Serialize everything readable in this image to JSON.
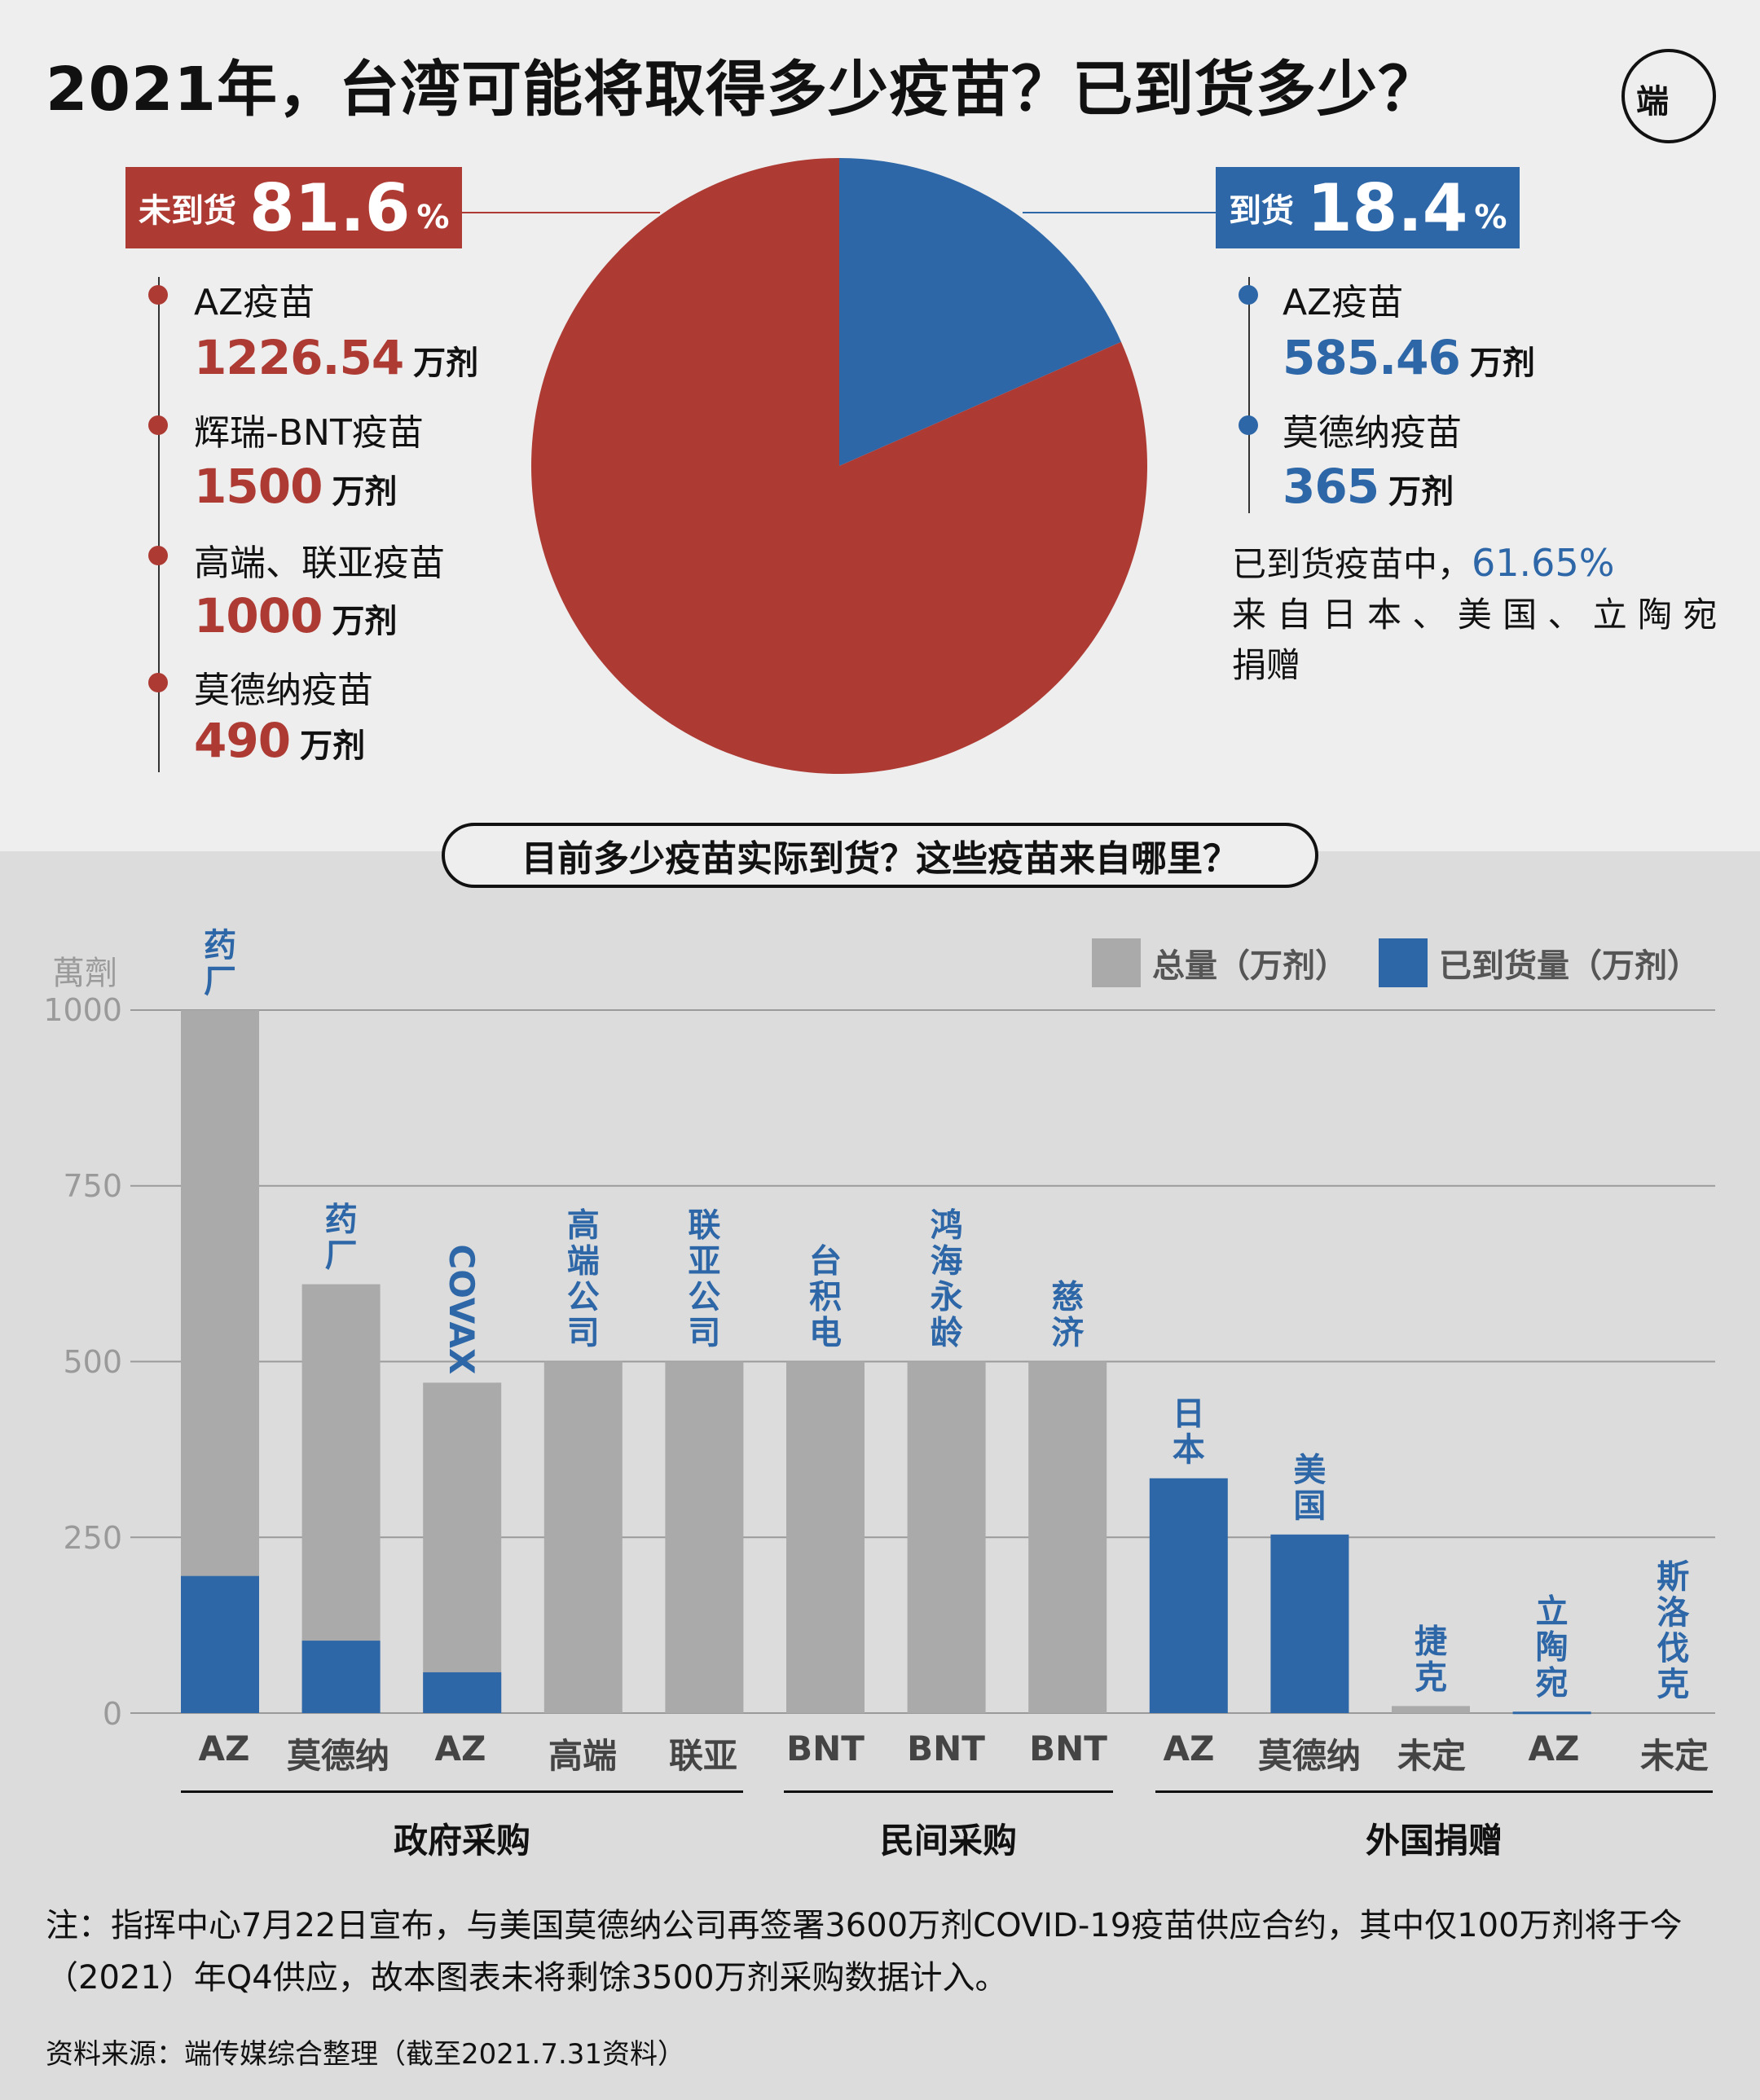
{
  "title": "2021年，台湾可能将取得多少疫苗？已到货多少？",
  "logo_text": "端",
  "pie": {
    "undelivered": {
      "label": "未到货",
      "pct": "81.6",
      "unit": "%",
      "color": "#ad3b34"
    },
    "delivered": {
      "label": "到货",
      "pct": "18.4",
      "unit": "%",
      "color": "#2e67a7"
    },
    "left_items": [
      {
        "name": "AZ疫苗",
        "value": "1226.54",
        "unit": "万剂"
      },
      {
        "name": "辉瑞-BNT疫苗",
        "value": "1500",
        "unit": "万剂"
      },
      {
        "name": "高端、联亚疫苗",
        "value": "1000",
        "unit": "万剂"
      },
      {
        "name": "莫德纳疫苗",
        "value": "490",
        "unit": "万剂"
      }
    ],
    "right_items": [
      {
        "name": "AZ疫苗",
        "value": "585.46",
        "unit": "万剂"
      },
      {
        "name": "莫德纳疫苗",
        "value": "365",
        "unit": "万剂"
      }
    ],
    "note": {
      "line1_a": "已到货疫苗中，",
      "line1_b": "61.65%",
      "line2": "来 自 日 本 、 美 国 、 立 陶 宛",
      "line3": "捐赠"
    }
  },
  "section_title": "目前多少疫苗实际到货？这些疫苗来自哪里？",
  "legend": {
    "total": "总量（万剂）",
    "arrived": "已到货量（万剂）"
  },
  "colors": {
    "red": "#ad3b34",
    "blue": "#2e67a7",
    "gray": "#aaaaaa"
  },
  "chart_data": [
    {
      "type": "pie",
      "series": [
        {
          "name": "到货",
          "value": 18.4
        },
        {
          "name": "未到货",
          "value": 81.6
        }
      ]
    },
    {
      "type": "bar",
      "ylabel": "萬劑",
      "ylim": [
        0,
        1000
      ],
      "yticks": [
        "1000",
        "750",
        "500",
        "250",
        "0"
      ],
      "categories": [
        "AZ",
        "莫德纳",
        "AZ",
        "高端",
        "联亚",
        "BNT",
        "BNT",
        "BNT",
        "AZ",
        "莫德纳",
        "未定",
        "AZ",
        "未定"
      ],
      "sources": [
        "药厂",
        "药厂",
        "COVAX",
        "高端公司",
        "联亚公司",
        "台积电",
        "鸿海永龄",
        "慈济",
        "日本",
        "美国",
        "捷克",
        "立陶宛",
        "斯洛伐克"
      ],
      "groups": [
        {
          "label": "政府采购",
          "from": 0,
          "to": 4
        },
        {
          "label": "民间采购",
          "from": 5,
          "to": 7
        },
        {
          "label": "外国捐赠",
          "from": 8,
          "to": 12
        }
      ],
      "series": [
        {
          "name": "总量（万剂）",
          "values": [
            1000,
            610,
            470,
            500,
            500,
            500,
            500,
            500,
            null,
            null,
            10,
            null,
            null
          ]
        },
        {
          "name": "已到货量（万剂）",
          "values": [
            195,
            103,
            58,
            null,
            null,
            null,
            null,
            null,
            334,
            254,
            null,
            2,
            null
          ]
        }
      ]
    }
  ],
  "footnote": "注：指挥中心7月22日宣布，与美国莫德纳公司再签署3600万剂COVID-19疫苗供应合约，其中仅100万剂将于今（2021）年Q4供应，故本图表未将剩馀3500万剂采购数据计入。",
  "source": "资料来源：端传媒综合整理（截至2021.7.31资料）"
}
